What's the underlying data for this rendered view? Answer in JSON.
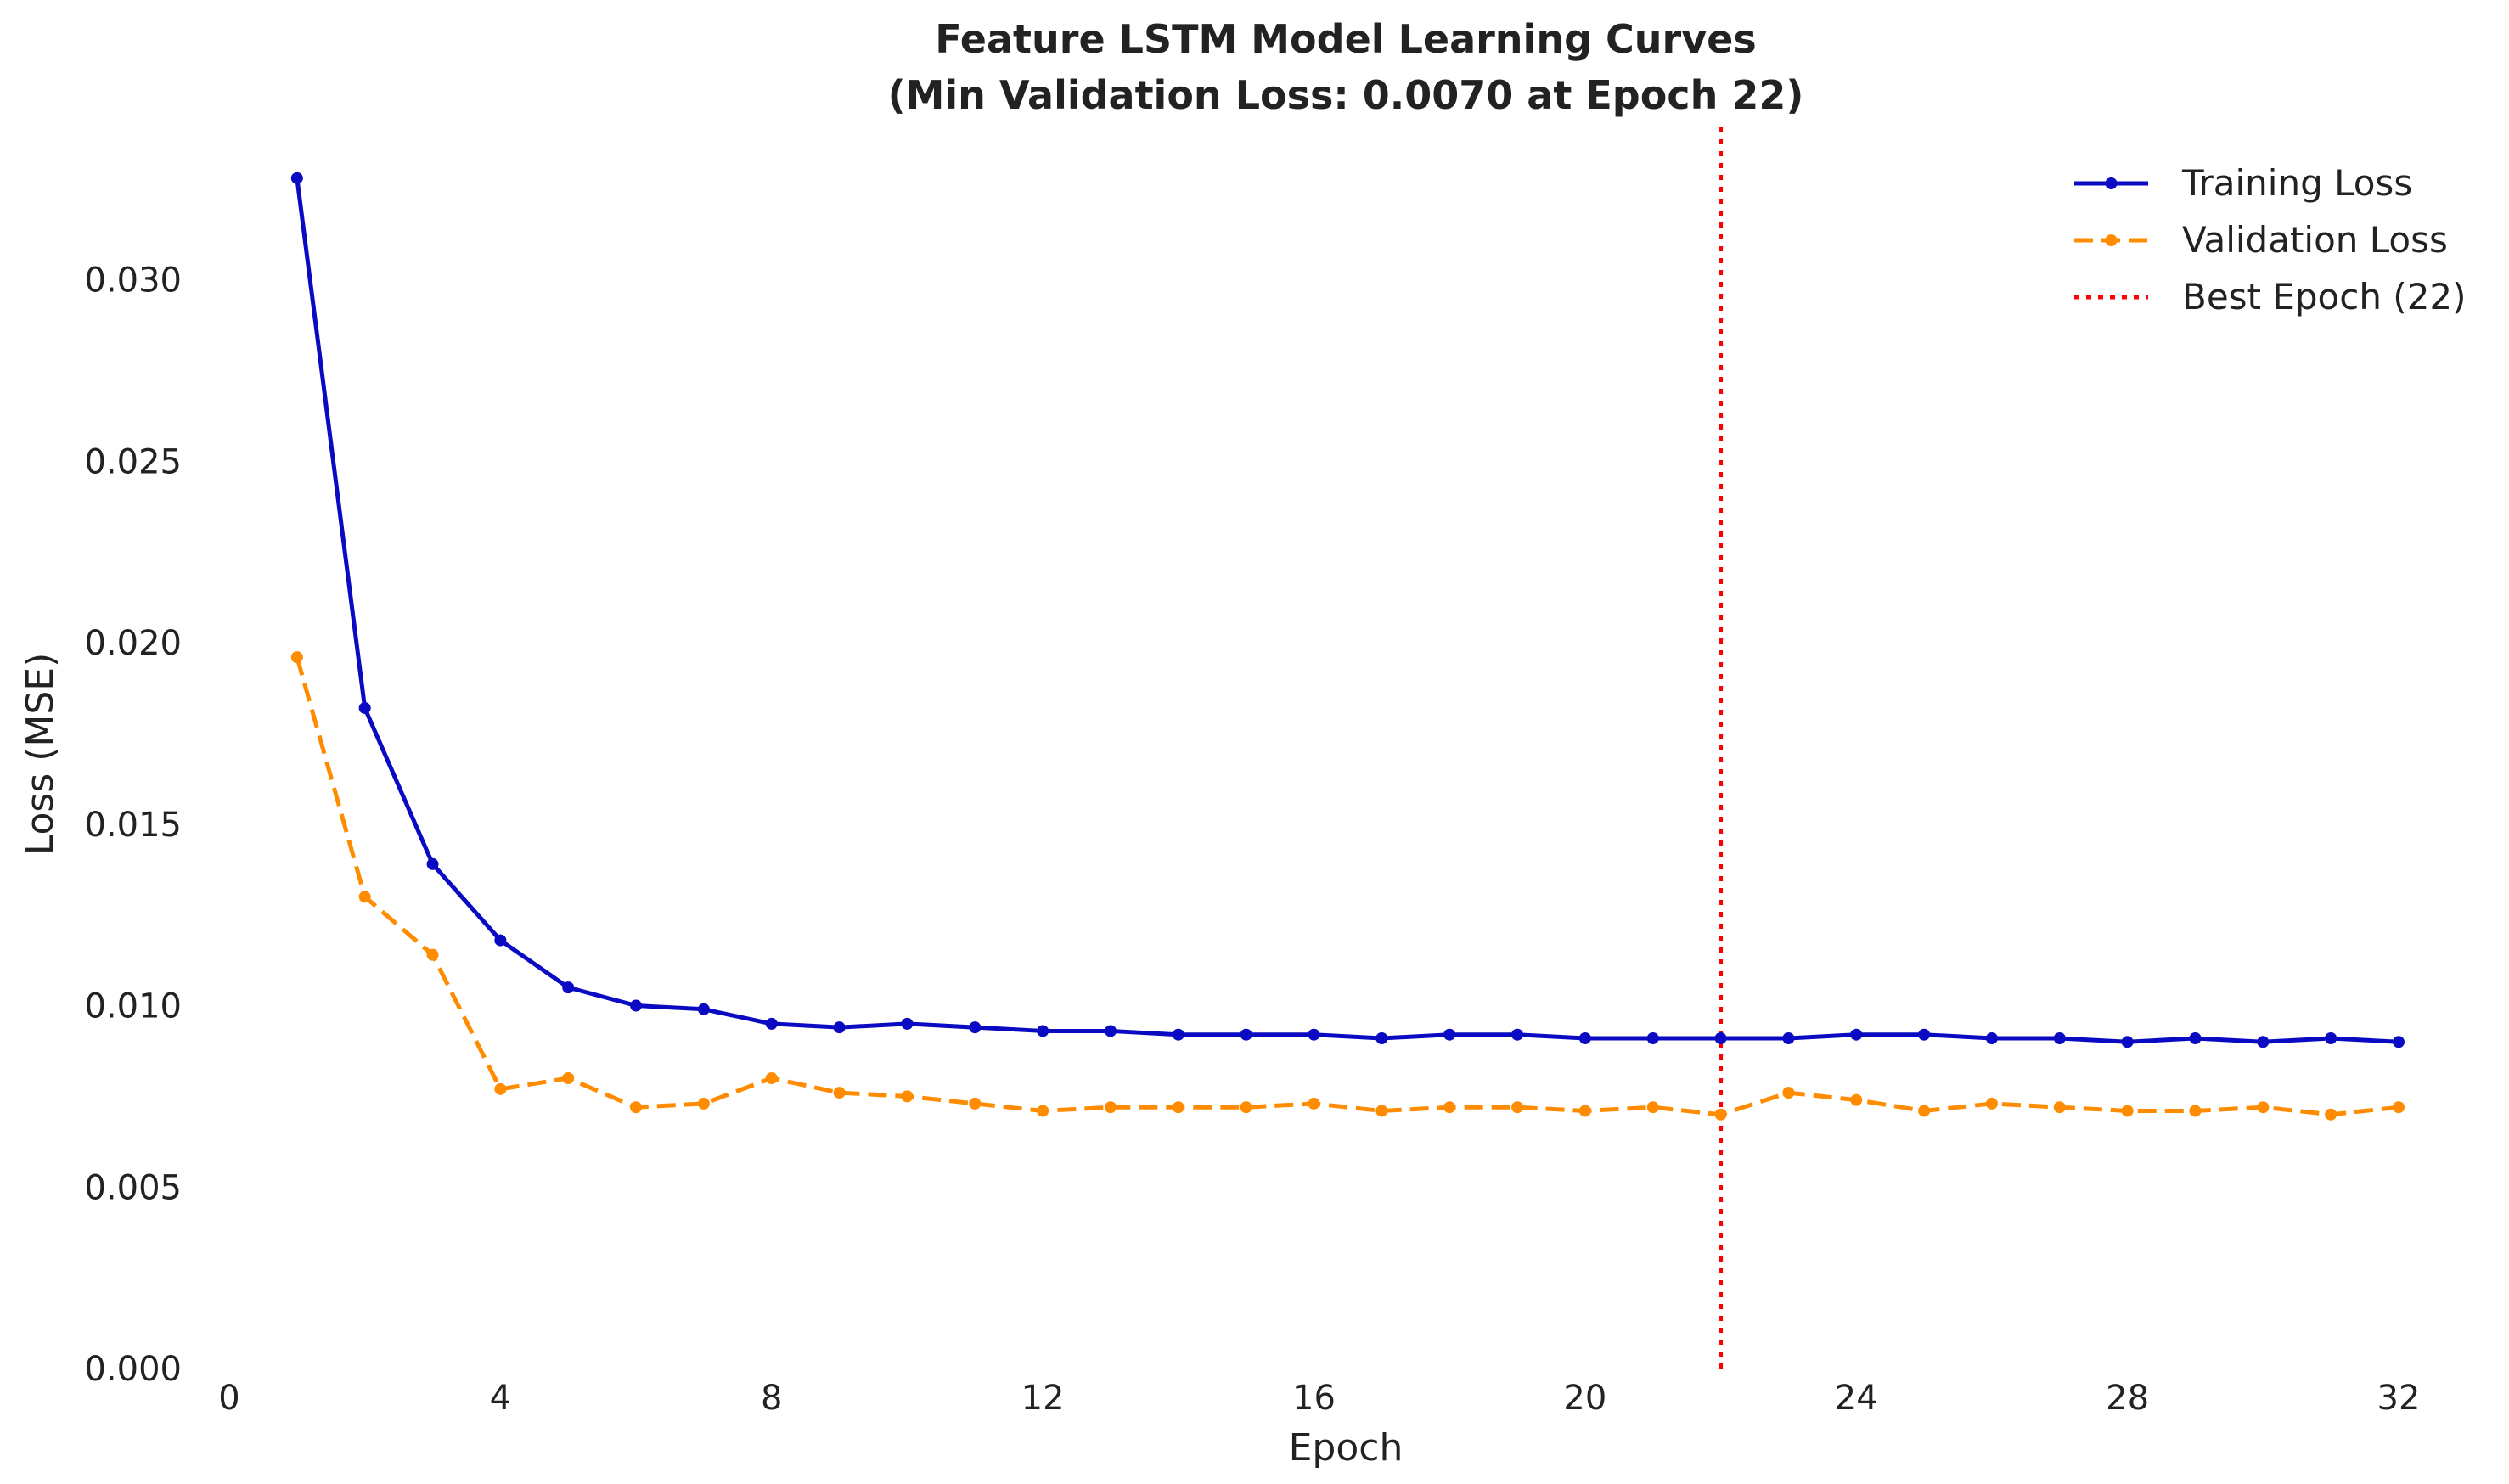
{
  "chart_data": {
    "type": "line",
    "title": "Feature LSTM Model Learning Curves",
    "subtitle": "(Min Validation Loss: 0.0070 at Epoch 22)",
    "xlabel": "Epoch",
    "ylabel": "Loss (MSE)",
    "xlim": [
      0,
      32
    ],
    "ylim": [
      0,
      0.0342
    ],
    "xticks": [
      "0",
      "4",
      "8",
      "12",
      "16",
      "20",
      "24",
      "28",
      "32"
    ],
    "yticks": [
      "0.000",
      "0.005",
      "0.010",
      "0.015",
      "0.020",
      "0.025",
      "0.030"
    ],
    "grid": false,
    "legend_position": "top-right",
    "x": [
      1,
      2,
      3,
      4,
      5,
      6,
      7,
      8,
      9,
      10,
      11,
      12,
      13,
      14,
      15,
      16,
      17,
      18,
      19,
      20,
      21,
      22,
      23,
      24,
      25,
      26,
      27,
      28,
      29,
      30,
      31,
      32
    ],
    "series": [
      {
        "name": "Training Loss",
        "color": "#0a0ac2",
        "style": "solid",
        "values": [
          0.0328,
          0.0182,
          0.0139,
          0.0118,
          0.0105,
          0.01,
          0.0099,
          0.0095,
          0.0094,
          0.0095,
          0.0094,
          0.0093,
          0.0093,
          0.0092,
          0.0092,
          0.0092,
          0.0091,
          0.0092,
          0.0092,
          0.0091,
          0.0091,
          0.0091,
          0.0091,
          0.0092,
          0.0092,
          0.0091,
          0.0091,
          0.009,
          0.0091,
          0.009,
          0.0091,
          0.009
        ]
      },
      {
        "name": "Validation Loss",
        "color": "#ff8c00",
        "style": "dashed",
        "values": [
          0.0196,
          0.013,
          0.0114,
          0.0077,
          0.008,
          0.0072,
          0.0073,
          0.008,
          0.0076,
          0.0075,
          0.0073,
          0.0071,
          0.0072,
          0.0072,
          0.0072,
          0.0073,
          0.0071,
          0.0072,
          0.0072,
          0.0071,
          0.0072,
          0.007,
          0.0076,
          0.0074,
          0.0071,
          0.0073,
          0.0072,
          0.0071,
          0.0071,
          0.0072,
          0.007,
          0.0072
        ]
      }
    ],
    "annotations": [
      {
        "name": "Best Epoch (22)",
        "type": "vline",
        "x": 22,
        "color": "#ff0000",
        "style": "dotted"
      }
    ]
  }
}
